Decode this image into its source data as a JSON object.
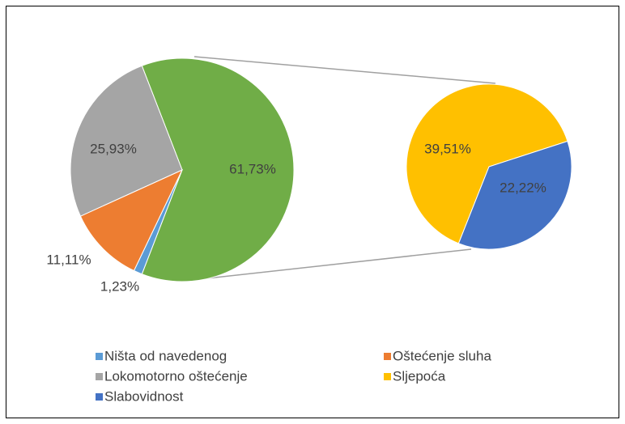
{
  "chart_data": {
    "type": "pie_of_pie",
    "primary": [
      {
        "name": "Ništa od navedenog",
        "color": "#5b9bd5",
        "value": 1.23,
        "value_label": "1,23%"
      },
      {
        "name": "Oštećenje sluha",
        "color": "#ed7d31",
        "value": 11.11,
        "value_label": "11,11%"
      },
      {
        "name": "Lokomotorno oštećenje",
        "color": "#a5a5a5",
        "value": 25.93,
        "value_label": "25,93%"
      }
    ],
    "other": {
      "color": "#70ad47",
      "value": 61.73,
      "value_label": "61,73%"
    },
    "secondary": [
      {
        "name": "Sljepoća",
        "color": "#ffc000",
        "value": 39.51,
        "value_label": "39,51%"
      },
      {
        "name": "Slabovidnost",
        "color": "#4472c4",
        "value": 22.22,
        "value_label": "22,22%"
      }
    ],
    "legend": "bottom"
  }
}
